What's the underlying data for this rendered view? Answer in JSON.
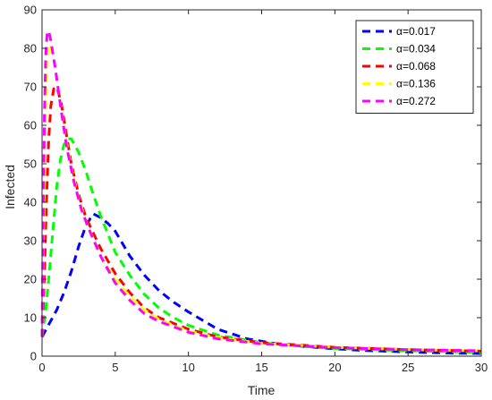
{
  "chart_data": {
    "type": "line",
    "xlabel": "Time",
    "ylabel": "Infected",
    "xlim": [
      0,
      30
    ],
    "ylim": [
      0,
      90
    ],
    "xticks": [
      0,
      5,
      10,
      15,
      20,
      25,
      30
    ],
    "yticks": [
      0,
      10,
      20,
      30,
      40,
      50,
      60,
      70,
      80,
      90
    ],
    "grid": false,
    "legend_position": "top-right",
    "line_style": "dashed",
    "series": [
      {
        "name": "α=0.017",
        "color": "#0000ff",
        "points": [
          [
            0,
            5
          ],
          [
            0.5,
            8.5
          ],
          [
            1,
            12
          ],
          [
            1.5,
            16.5
          ],
          [
            2,
            22
          ],
          [
            2.5,
            28.5
          ],
          [
            3,
            34
          ],
          [
            3.5,
            37
          ],
          [
            4,
            36
          ],
          [
            4.5,
            34.5
          ],
          [
            5,
            32.5
          ],
          [
            6,
            26
          ],
          [
            7,
            21
          ],
          [
            8,
            17
          ],
          [
            9,
            14
          ],
          [
            10,
            11.5
          ],
          [
            12,
            7
          ],
          [
            14,
            4.5
          ],
          [
            16,
            3.2
          ],
          [
            18,
            2.5
          ],
          [
            20,
            1.9
          ],
          [
            22,
            1.5
          ],
          [
            25,
            1.1
          ],
          [
            28,
            0.8
          ],
          [
            30,
            0.7
          ]
        ]
      },
      {
        "name": "α=0.034",
        "color": "#00ff00",
        "points": [
          [
            0,
            5
          ],
          [
            0.25,
            12
          ],
          [
            0.5,
            22
          ],
          [
            0.75,
            33
          ],
          [
            1,
            44
          ],
          [
            1.25,
            51
          ],
          [
            1.5,
            55
          ],
          [
            1.75,
            56.5
          ],
          [
            2,
            56.5
          ],
          [
            2.5,
            53
          ],
          [
            3,
            48
          ],
          [
            3.5,
            42
          ],
          [
            4,
            36.5
          ],
          [
            5,
            27
          ],
          [
            6,
            21
          ],
          [
            7,
            16
          ],
          [
            8,
            12.5
          ],
          [
            9,
            10
          ],
          [
            10,
            8
          ],
          [
            12,
            5.5
          ],
          [
            15,
            3.5
          ],
          [
            18,
            2.5
          ],
          [
            20,
            2
          ],
          [
            25,
            1.4
          ],
          [
            30,
            1
          ]
        ]
      },
      {
        "name": "α=0.068",
        "color": "#ff0000",
        "points": [
          [
            0,
            5
          ],
          [
            0.15,
            20
          ],
          [
            0.3,
            40
          ],
          [
            0.45,
            56
          ],
          [
            0.6,
            65
          ],
          [
            0.8,
            69.5
          ],
          [
            1,
            70
          ],
          [
            1.3,
            66
          ],
          [
            1.6,
            59
          ],
          [
            2,
            50
          ],
          [
            2.5,
            42
          ],
          [
            3,
            36
          ],
          [
            4,
            28
          ],
          [
            5,
            21.5
          ],
          [
            6,
            16.5
          ],
          [
            7,
            12.5
          ],
          [
            8,
            10
          ],
          [
            10,
            7
          ],
          [
            12,
            5
          ],
          [
            15,
            3.5
          ],
          [
            20,
            2.3
          ],
          [
            25,
            1.7
          ],
          [
            30,
            1.3
          ]
        ]
      },
      {
        "name": "α=0.136",
        "color": "#ffff00",
        "points": [
          [
            0,
            5
          ],
          [
            0.1,
            30
          ],
          [
            0.2,
            55
          ],
          [
            0.3,
            72
          ],
          [
            0.4,
            80
          ],
          [
            0.55,
            81
          ],
          [
            0.8,
            77
          ],
          [
            1.2,
            67
          ],
          [
            1.6,
            57
          ],
          [
            2,
            49
          ],
          [
            2.5,
            41
          ],
          [
            3,
            35
          ],
          [
            4,
            26
          ],
          [
            5,
            20
          ],
          [
            6,
            15.5
          ],
          [
            7,
            12
          ],
          [
            8,
            9.5
          ],
          [
            10,
            6.5
          ],
          [
            12,
            4.8
          ],
          [
            15,
            3.3
          ],
          [
            20,
            2.3
          ],
          [
            25,
            1.7
          ],
          [
            30,
            1.4
          ]
        ]
      },
      {
        "name": "α=0.272",
        "color": "#ff00ff",
        "points": [
          [
            0,
            5
          ],
          [
            0.08,
            35
          ],
          [
            0.16,
            62
          ],
          [
            0.25,
            78
          ],
          [
            0.35,
            84
          ],
          [
            0.45,
            84.5
          ],
          [
            0.6,
            82
          ],
          [
            0.9,
            75
          ],
          [
            1.3,
            64
          ],
          [
            1.7,
            54
          ],
          [
            2.2,
            45
          ],
          [
            2.7,
            38
          ],
          [
            3.2,
            33
          ],
          [
            4,
            26
          ],
          [
            5,
            19
          ],
          [
            6,
            14.5
          ],
          [
            7,
            11
          ],
          [
            8,
            9
          ],
          [
            10,
            6.2
          ],
          [
            12,
            4.5
          ],
          [
            15,
            3.2
          ],
          [
            20,
            2.2
          ],
          [
            25,
            1.7
          ],
          [
            30,
            1.4
          ]
        ]
      }
    ]
  }
}
